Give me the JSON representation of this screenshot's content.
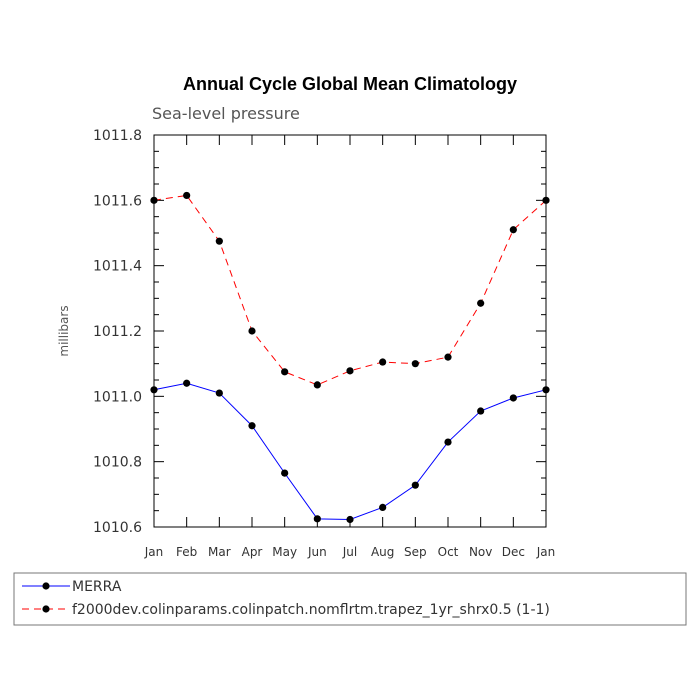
{
  "chart_data": {
    "type": "line",
    "title": "Annual Cycle Global Mean Climatology",
    "subtitle": "Sea-level pressure",
    "xlabel": "",
    "ylabel": "millibars",
    "categories": [
      "Jan",
      "Feb",
      "Mar",
      "Apr",
      "May",
      "Jun",
      "Jul",
      "Aug",
      "Sep",
      "Oct",
      "Nov",
      "Dec",
      "Jan"
    ],
    "ylim": [
      1010.6,
      1011.8
    ],
    "yticks": [
      "1010.6",
      "1010.8",
      "1011.0",
      "1011.2",
      "1011.4",
      "1011.6",
      "1011.8"
    ],
    "series": [
      {
        "name": "MERRA",
        "color": "#0000ff",
        "dash": "solid",
        "values": [
          1011.02,
          1011.04,
          1011.01,
          1010.91,
          1010.765,
          1010.625,
          1010.623,
          1010.66,
          1010.728,
          1010.86,
          1010.955,
          1010.995,
          1011.02
        ]
      },
      {
        "name": "f2000dev.colinparams.colinpatch.nomflrtm.trapez_1yr_shrx0.5 (1-1)",
        "color": "#ff0000",
        "dash": "dashed",
        "values": [
          1011.6,
          1011.615,
          1011.475,
          1011.2,
          1011.075,
          1011.035,
          1011.078,
          1011.105,
          1011.1,
          1011.12,
          1011.285,
          1011.51,
          1011.6
        ]
      }
    ],
    "legend": "bottom",
    "grid": false
  }
}
